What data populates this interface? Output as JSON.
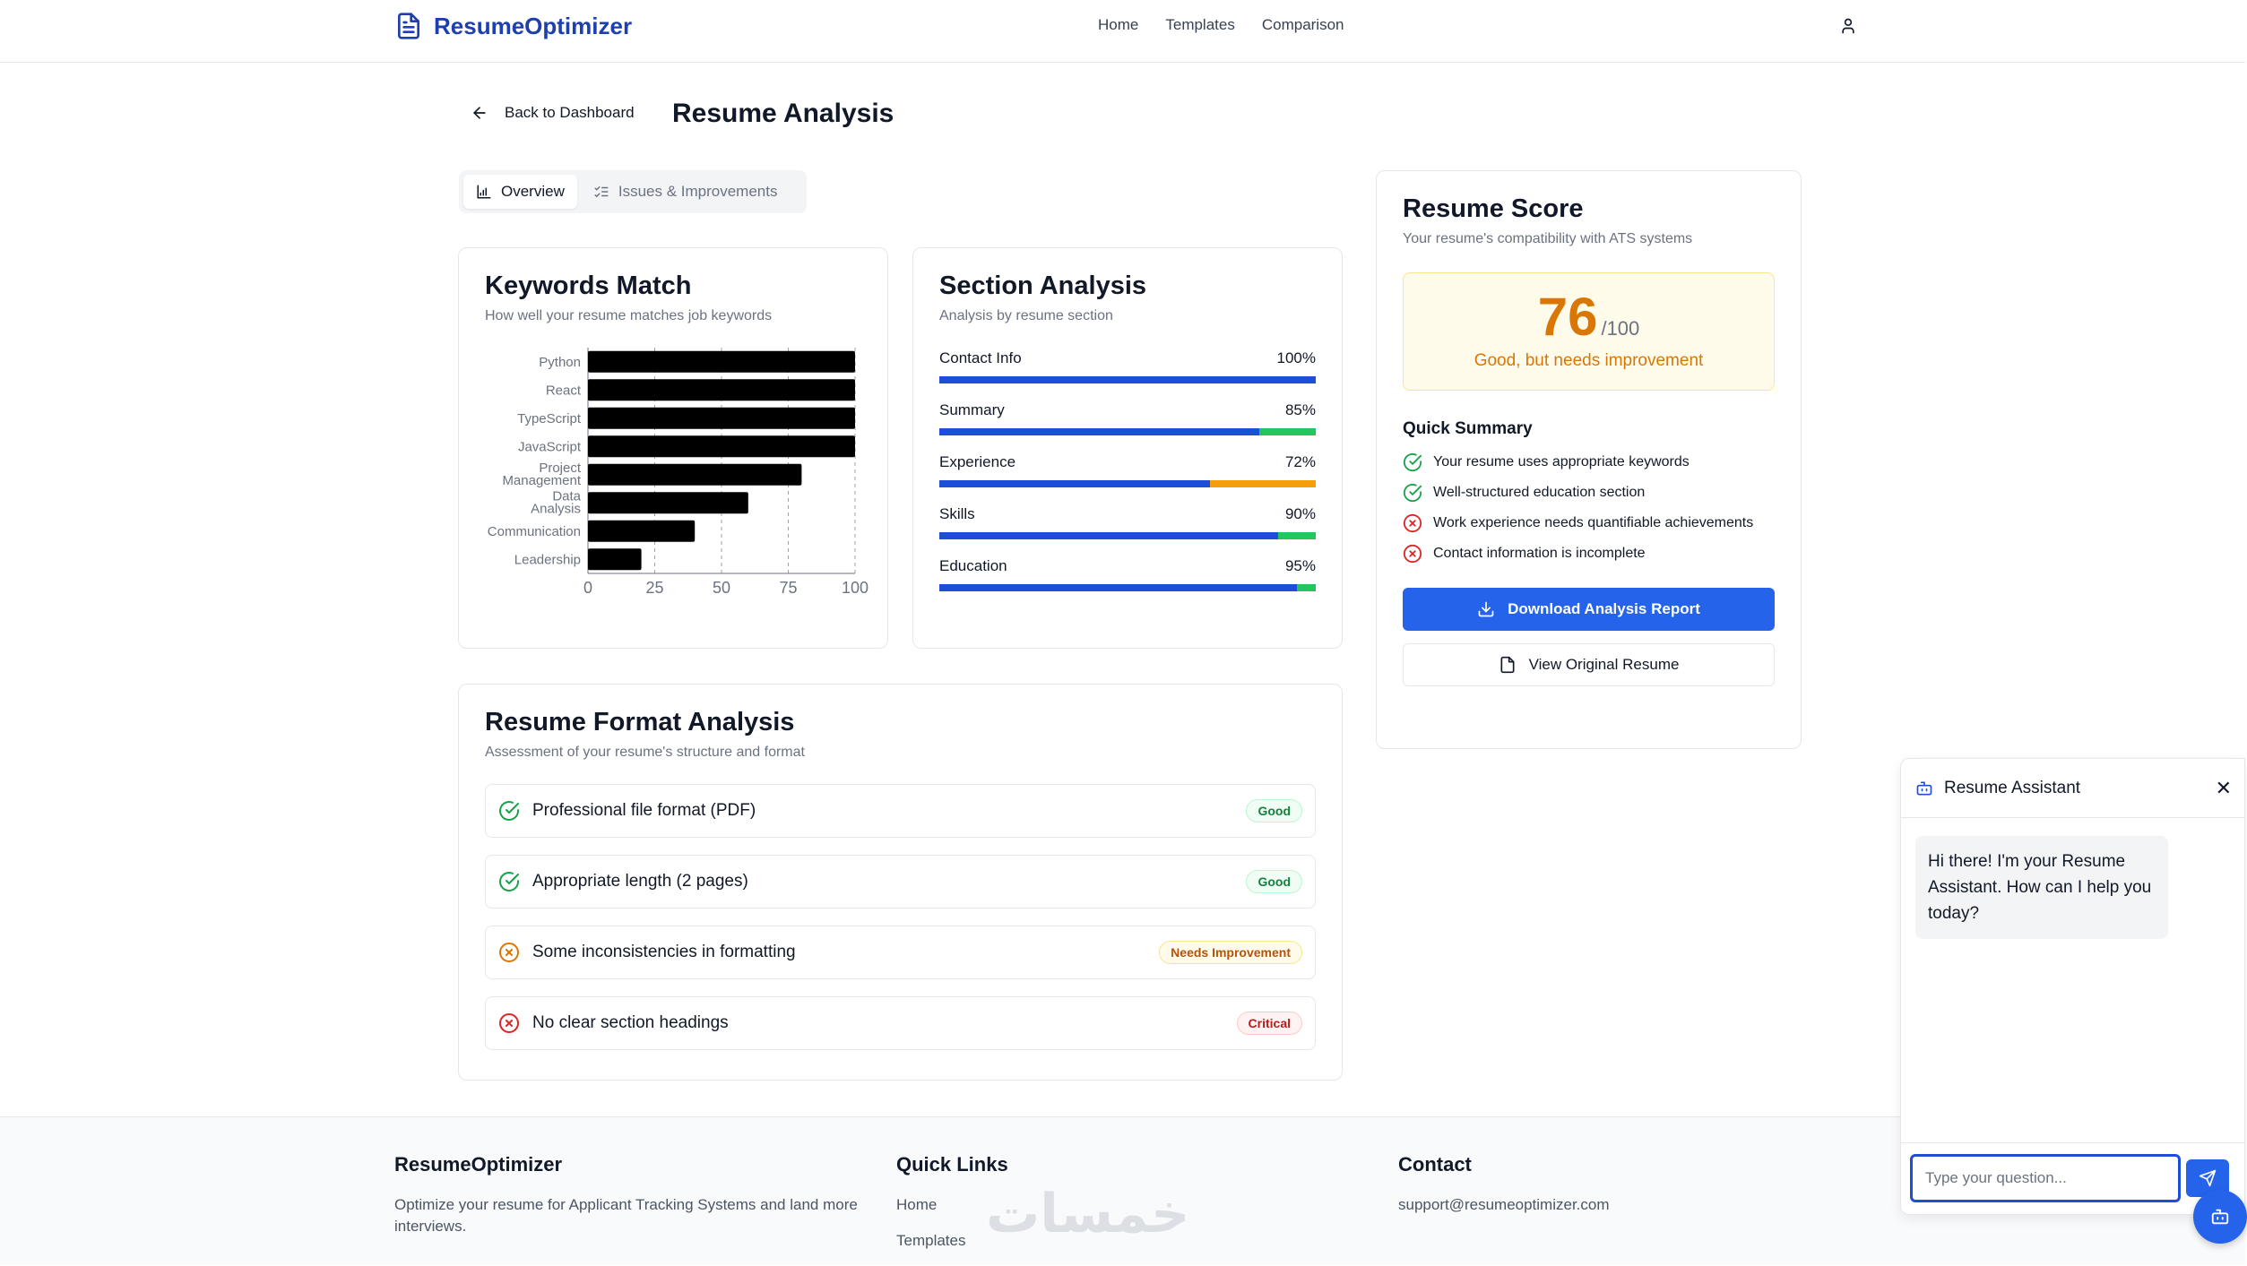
{
  "header": {
    "brand": "ResumeOptimizer",
    "nav": [
      "Home",
      "Templates",
      "Comparison"
    ]
  },
  "page": {
    "back_label": "Back to Dashboard",
    "title": "Resume Analysis"
  },
  "tabs": [
    {
      "label": "Overview",
      "active": true
    },
    {
      "label": "Issues & Improvements",
      "active": false
    }
  ],
  "keywords_card": {
    "title": "Keywords Match",
    "subtitle": "How well your resume matches job keywords"
  },
  "chart_data": {
    "type": "bar",
    "orientation": "horizontal",
    "categories": [
      "Python",
      "React",
      "TypeScript",
      "JavaScript",
      "Project Management",
      "Data Analysis",
      "Communication",
      "Leadership"
    ],
    "values": [
      100,
      100,
      100,
      100,
      80,
      60,
      40,
      20
    ],
    "xlim": [
      0,
      100
    ],
    "xticks": [
      0,
      25,
      50,
      75,
      100
    ],
    "grid": true,
    "bar_color": "#000000"
  },
  "section_card": {
    "title": "Section Analysis",
    "subtitle": "Analysis by resume section",
    "items": [
      {
        "label": "Contact Info",
        "value": "100%",
        "pct": 100,
        "tail_color": "#1d4ed8"
      },
      {
        "label": "Summary",
        "value": "85%",
        "pct": 85,
        "tail_color": "#22c55e"
      },
      {
        "label": "Experience",
        "value": "72%",
        "pct": 72,
        "tail_color": "#f59e0b"
      },
      {
        "label": "Skills",
        "value": "90%",
        "pct": 90,
        "tail_color": "#22c55e"
      },
      {
        "label": "Education",
        "value": "95%",
        "pct": 95,
        "tail_color": "#22c55e"
      }
    ]
  },
  "format_card": {
    "title": "Resume Format Analysis",
    "subtitle": "Assessment of your resume's structure and format",
    "items": [
      {
        "label": "Professional file format (PDF)",
        "badge": "Good",
        "status": "good"
      },
      {
        "label": "Appropriate length (2 pages)",
        "badge": "Good",
        "status": "good"
      },
      {
        "label": "Some inconsistencies in formatting",
        "badge": "Needs Improvement",
        "status": "warn"
      },
      {
        "label": "No clear section headings",
        "badge": "Critical",
        "status": "crit"
      }
    ]
  },
  "score_card": {
    "title": "Resume Score",
    "subtitle": "Your resume's compatibility with ATS systems",
    "score": "76",
    "max": "/100",
    "status": "Good, but needs improvement",
    "summary_title": "Quick Summary",
    "summary": [
      {
        "text": "Your resume uses appropriate keywords",
        "ok": true
      },
      {
        "text": "Well-structured education section",
        "ok": true
      },
      {
        "text": "Work experience needs quantifiable achievements",
        "ok": false
      },
      {
        "text": "Contact information is incomplete",
        "ok": false
      }
    ],
    "download_label": "Download Analysis Report",
    "view_label": "View Original Resume"
  },
  "footer": {
    "brand": "ResumeOptimizer",
    "tagline": "Optimize your resume for Applicant Tracking Systems and land more interviews.",
    "links_title": "Quick Links",
    "links": [
      "Home",
      "Templates"
    ],
    "contact_title": "Contact",
    "email": "support@resumeoptimizer.com",
    "watermark": "خمسات"
  },
  "chat": {
    "title": "Resume Assistant",
    "message": "Hi there! I'm your Resume Assistant. How can I help you today?",
    "placeholder": "Type your question..."
  },
  "colors": {
    "primary": "#2563eb",
    "brand": "#1e40af",
    "good": "#16a34a",
    "warn": "#d97706",
    "critical": "#dc2626"
  }
}
